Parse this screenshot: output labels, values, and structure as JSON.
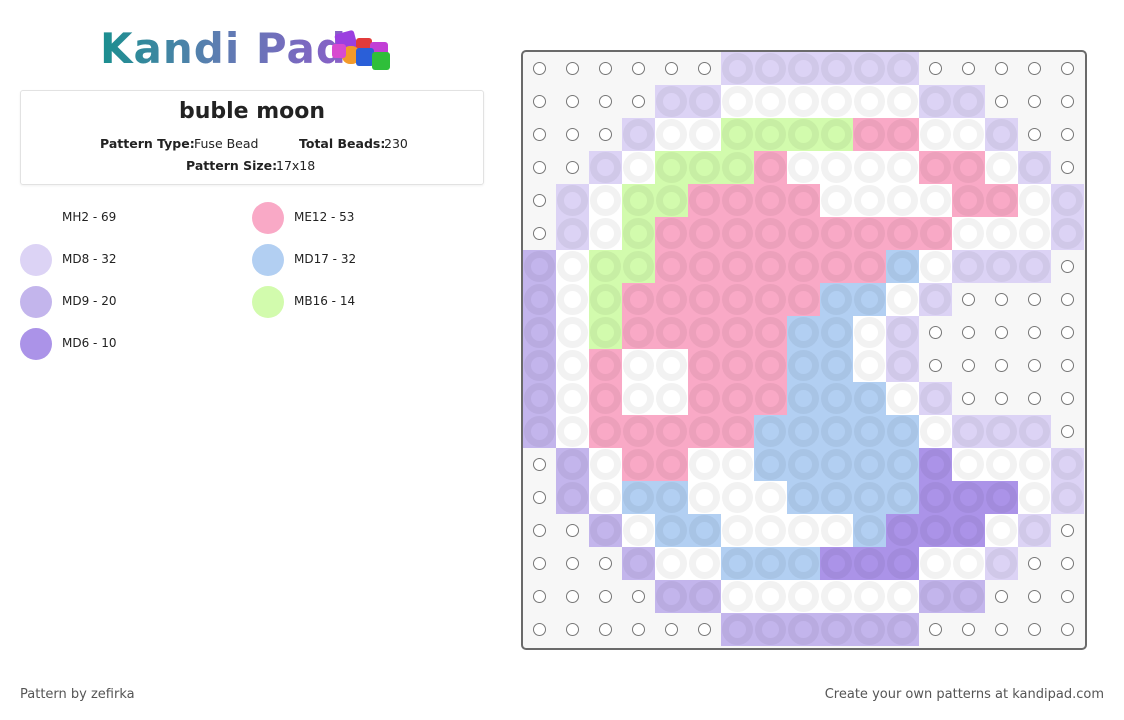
{
  "logo": "Kandi Pad",
  "title": "buble moon",
  "info": {
    "type_label": "Pattern Type:",
    "type_value": "Fuse Bead",
    "total_label": "Total Beads:",
    "total_value": "230",
    "size_label": "Pattern Size:",
    "size_value": "17x18"
  },
  "legend": [
    {
      "label": "MH2 - 69",
      "color": "#ffffff"
    },
    {
      "label": "MD8 - 32",
      "color": "#dcd3f5"
    },
    {
      "label": "MD9 - 20",
      "color": "#c3b5ec"
    },
    {
      "label": "MD6 - 10",
      "color": "#ab93e8"
    },
    {
      "label": "ME12 - 53",
      "color": "#f9a9c6"
    },
    {
      "label": "MD17 - 32",
      "color": "#b2cff2"
    },
    {
      "label": "MB16 - 14",
      "color": "#d2fbad"
    }
  ],
  "grid": [
    [
      null,
      null,
      null,
      null,
      null,
      null,
      1,
      1,
      1,
      1,
      1,
      1,
      null,
      null,
      null,
      null,
      null
    ],
    [
      null,
      null,
      null,
      null,
      1,
      1,
      0,
      0,
      0,
      0,
      0,
      0,
      1,
      1,
      null,
      null,
      null
    ],
    [
      null,
      null,
      null,
      1,
      0,
      0,
      6,
      6,
      6,
      6,
      4,
      4,
      0,
      0,
      1,
      null,
      null
    ],
    [
      null,
      null,
      1,
      0,
      6,
      6,
      6,
      4,
      0,
      0,
      0,
      0,
      4,
      4,
      0,
      1,
      null
    ],
    [
      null,
      1,
      0,
      6,
      6,
      4,
      4,
      4,
      4,
      0,
      0,
      0,
      0,
      4,
      4,
      0,
      1
    ],
    [
      null,
      1,
      0,
      6,
      4,
      4,
      4,
      4,
      4,
      4,
      4,
      4,
      4,
      0,
      0,
      0,
      1
    ],
    [
      2,
      0,
      6,
      6,
      4,
      4,
      4,
      4,
      4,
      4,
      4,
      5,
      0,
      1,
      1,
      1,
      null
    ],
    [
      2,
      0,
      6,
      4,
      4,
      4,
      4,
      4,
      4,
      5,
      5,
      0,
      1,
      null,
      null,
      null,
      null
    ],
    [
      2,
      0,
      6,
      4,
      4,
      4,
      4,
      4,
      5,
      5,
      0,
      1,
      null,
      null,
      null,
      null,
      null
    ],
    [
      2,
      0,
      4,
      0,
      0,
      4,
      4,
      4,
      5,
      5,
      0,
      1,
      null,
      null,
      null,
      null,
      null
    ],
    [
      2,
      0,
      4,
      0,
      0,
      4,
      4,
      4,
      5,
      5,
      5,
      0,
      1,
      null,
      null,
      null,
      null
    ],
    [
      2,
      0,
      4,
      4,
      4,
      4,
      4,
      5,
      5,
      5,
      5,
      5,
      0,
      1,
      1,
      1,
      null
    ],
    [
      null,
      2,
      0,
      4,
      4,
      0,
      0,
      5,
      5,
      5,
      5,
      5,
      3,
      0,
      0,
      0,
      1
    ],
    [
      null,
      2,
      0,
      5,
      5,
      0,
      0,
      0,
      5,
      5,
      5,
      5,
      3,
      3,
      3,
      0,
      1
    ],
    [
      null,
      null,
      2,
      0,
      5,
      5,
      0,
      0,
      0,
      0,
      5,
      3,
      3,
      3,
      0,
      1,
      null
    ],
    [
      null,
      null,
      null,
      2,
      0,
      0,
      5,
      5,
      5,
      3,
      3,
      3,
      0,
      0,
      1,
      null,
      null
    ],
    [
      null,
      null,
      null,
      null,
      2,
      2,
      0,
      0,
      0,
      0,
      0,
      0,
      2,
      2,
      null,
      null,
      null
    ],
    [
      null,
      null,
      null,
      null,
      null,
      null,
      2,
      2,
      2,
      2,
      2,
      2,
      null,
      null,
      null,
      null,
      null
    ]
  ],
  "footer": {
    "left": "Pattern by zefirka",
    "right": "Create your own patterns at kandipad.com"
  }
}
